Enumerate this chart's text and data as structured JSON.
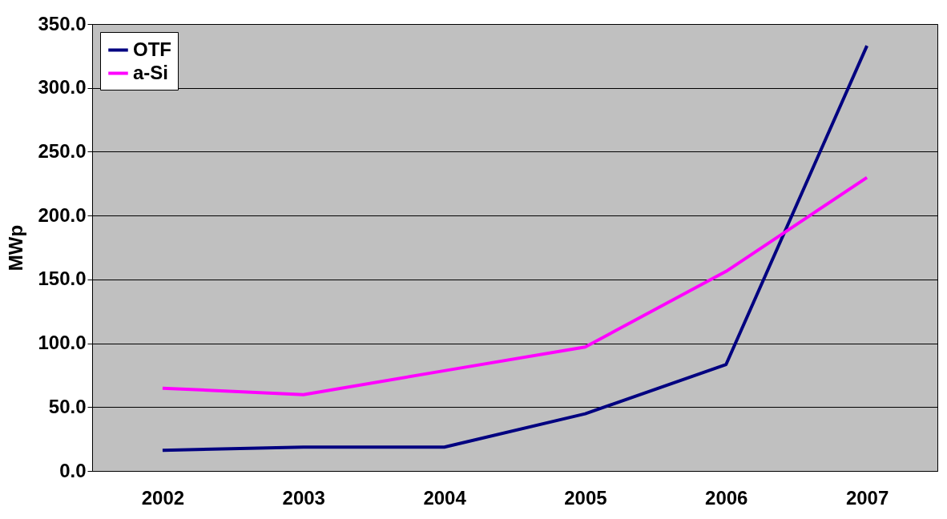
{
  "chart_data": {
    "type": "line",
    "ylabel": "MWp",
    "categories": [
      "2002",
      "2003",
      "2004",
      "2005",
      "2006",
      "2007"
    ],
    "series": [
      {
        "name": "OTF",
        "color": "#000080",
        "values": [
          16.2,
          18.7,
          18.7,
          44.8,
          83.4,
          333.0
        ]
      },
      {
        "name": "a-Si",
        "color": "#ff00ff",
        "values": [
          64.8,
          59.8,
          78.5,
          97.1,
          156.3,
          229.8
        ]
      }
    ],
    "ylim": [
      0,
      350
    ],
    "yticks": [
      {
        "value": 0,
        "label": "0.0"
      },
      {
        "value": 50,
        "label": "50.0"
      },
      {
        "value": 100,
        "label": "100.0"
      },
      {
        "value": 150,
        "label": "150.0"
      },
      {
        "value": 200,
        "label": "200.0"
      },
      {
        "value": 250,
        "label": "250.0"
      },
      {
        "value": 300,
        "label": "300.0"
      },
      {
        "value": 350,
        "label": "350.0"
      }
    ],
    "grid": "y",
    "legend": "top left"
  }
}
